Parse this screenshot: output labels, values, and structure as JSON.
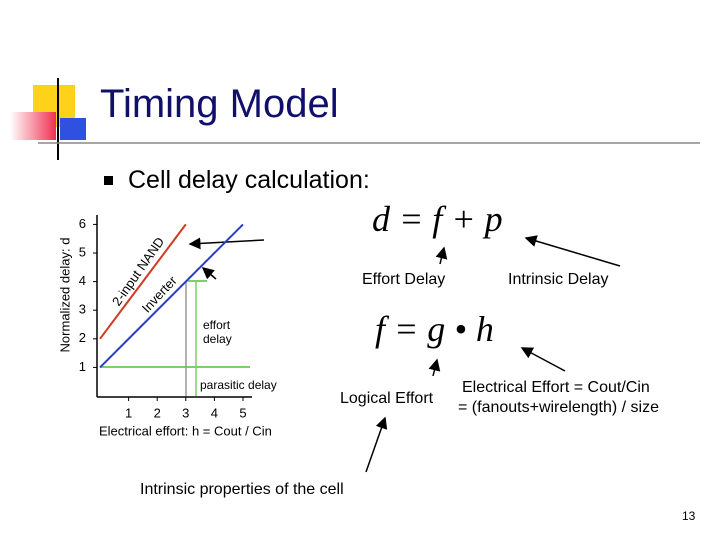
{
  "header": {
    "title": "Timing Model"
  },
  "bullet": "Cell delay calculation:",
  "formulas": {
    "delay": "d = f + p",
    "effort": "f = g • h"
  },
  "labels": {
    "effort_delay": "Effort Delay",
    "intrinsic_delay": "Intrinsic Delay",
    "logical_effort": "Logical Effort",
    "electrical_effort": "Electrical Effort = Cout/Cin",
    "electrical_effort_2": "= (fanouts+wirelength) / size",
    "intrinsic_properties": "Intrinsic properties of the cell"
  },
  "page_number": "13",
  "chart_data": {
    "type": "line",
    "ylabel": "Normalized delay: d",
    "xlabel": "Electrical effort: h = Cout / Cin",
    "series": [
      {
        "name": "2-input NAND",
        "color": "#d03a20",
        "x": [
          0,
          3
        ],
        "values": [
          2,
          6
        ]
      },
      {
        "name": "Inverter",
        "color": "#2a3ccc",
        "x": [
          0,
          5
        ],
        "values": [
          1,
          6
        ]
      }
    ],
    "xlim": [
      0,
      5.3
    ],
    "ylim": [
      0,
      6.3
    ],
    "xticks": [
      1,
      2,
      3,
      4,
      5
    ],
    "yticks": [
      1,
      2,
      3,
      4,
      5,
      6
    ],
    "annotations": [
      "effort delay",
      "parasitic delay"
    ]
  }
}
